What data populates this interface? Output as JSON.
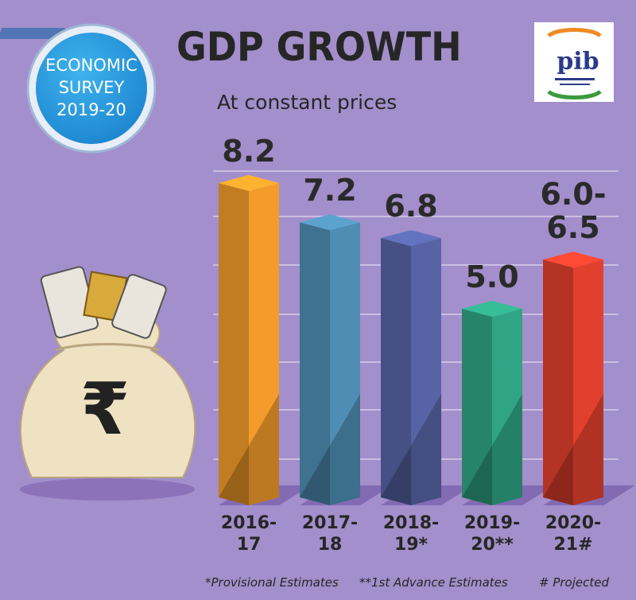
{
  "badge": {
    "line1": "ECONOMIC",
    "line2": "SURVEY",
    "line3": "2019-20"
  },
  "logo": {
    "text": "pib"
  },
  "colors": {
    "background": "#a38fcb",
    "bar_2016_17": "#f39c2b",
    "bar_2017_18": "#4f8db4",
    "bar_2018_19": "#5664a6",
    "bar_2019_20": "#2fa585",
    "bar_2020_21": "#e2402e"
  },
  "notes": {
    "provisional": "*Provisional Estimates",
    "advance": "**1st Advance Estimates",
    "projected": "# Projected"
  },
  "chart_data": {
    "type": "bar",
    "title": "GDP GROWTH",
    "subtitle": "At constant prices",
    "categories": [
      "2016-17",
      "2017-18",
      "2018-19*",
      "2019-20**",
      "2020-21#"
    ],
    "category_lines": [
      [
        "2016-",
        "17"
      ],
      [
        "2017-",
        "18"
      ],
      [
        "2018-",
        "19*"
      ],
      [
        "2019-",
        "20**"
      ],
      [
        "2020-",
        "21#"
      ]
    ],
    "values": [
      8.2,
      7.2,
      6.8,
      5.0,
      6.25
    ],
    "value_labels": [
      [
        "8.2"
      ],
      [
        "7.2"
      ],
      [
        "6.8"
      ],
      [
        "5.0"
      ],
      [
        "6.0-",
        "6.5"
      ]
    ],
    "ylim": [
      0,
      9
    ],
    "grid": true,
    "legend": "none"
  }
}
